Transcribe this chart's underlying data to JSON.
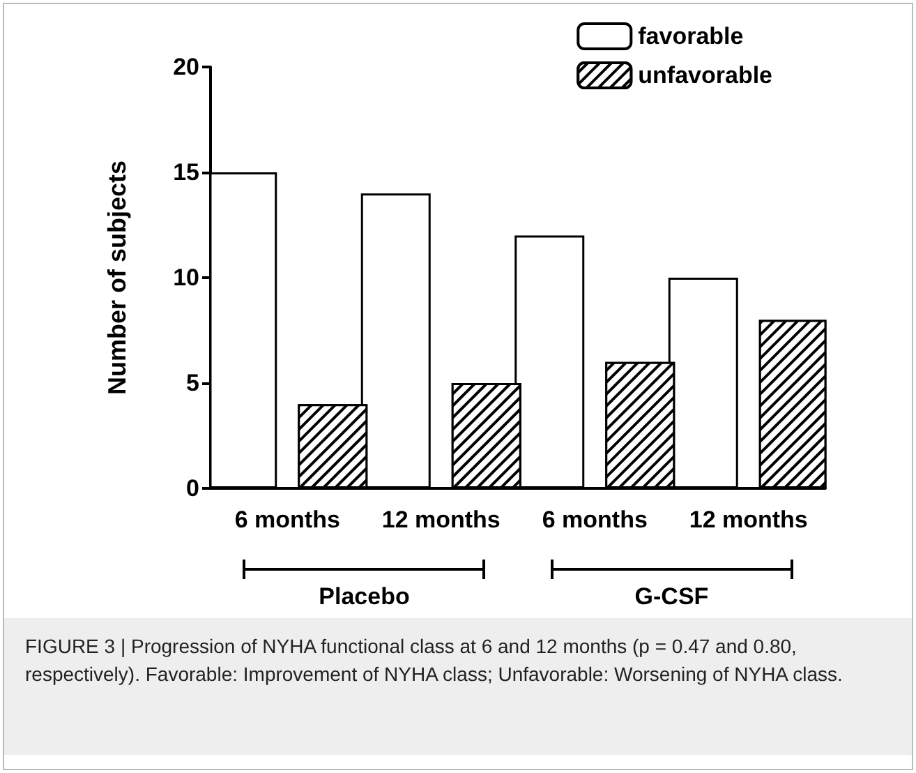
{
  "chart_data": {
    "type": "bar",
    "ylabel": "Number of subjects",
    "categories": [
      "6 months",
      "12 months",
      "6 months",
      "12 months"
    ],
    "series": [
      {
        "name": "favorable",
        "color": "#ffffff",
        "values": [
          15,
          14,
          12,
          10
        ]
      },
      {
        "name": "unfavorable",
        "color": "#000000",
        "values": [
          4,
          5,
          6,
          8
        ]
      }
    ],
    "ylim": [
      0,
      20
    ],
    "yticks": [
      0,
      5,
      10,
      15,
      20
    ],
    "grid": false,
    "legend": "top right",
    "annotations": [
      "Placebo",
      "G-CSF",
      "FIGURE 3 | Progression of NYHA functional class at 6 and 12 months (p = 0.47 and 0.80, respectively). Favorable: Improvement of NYHA class; Unfavorable: Worsening of NYHA class."
    ]
  }
}
